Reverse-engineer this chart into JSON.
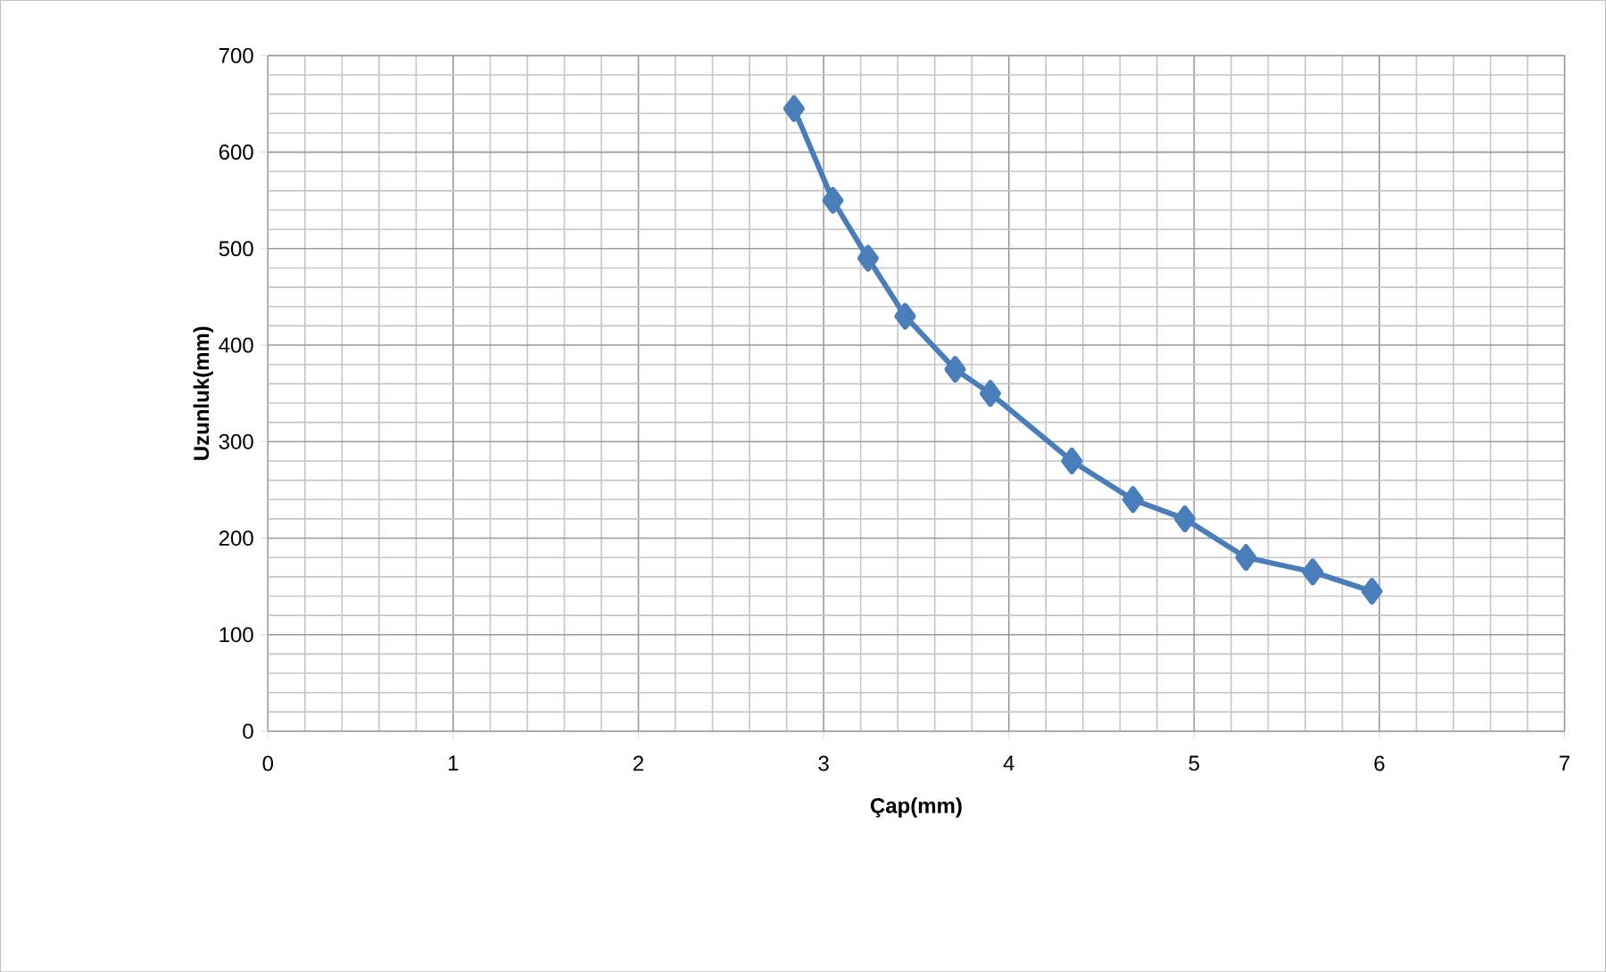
{
  "chart_data": {
    "type": "line",
    "xlabel": "Çap(mm)",
    "ylabel": "Uzunluk(mm)",
    "x": [
      2.84,
      3.05,
      3.24,
      3.44,
      3.71,
      3.9,
      4.34,
      4.67,
      4.95,
      5.28,
      5.64,
      5.96
    ],
    "series": [
      {
        "color": "#4a7ebb",
        "values": [
          645,
          550,
          490,
          430,
          375,
          350,
          280,
          240,
          220,
          180,
          165,
          145
        ]
      }
    ],
    "xlim": [
      0,
      7
    ],
    "ylim": [
      0,
      700
    ],
    "xticks": [
      0,
      1,
      2,
      3,
      4,
      5,
      6,
      7
    ],
    "yticks": [
      0,
      100,
      200,
      300,
      400,
      500,
      600,
      700
    ],
    "grid": true,
    "marker": "diamond",
    "line_style": "solid"
  }
}
